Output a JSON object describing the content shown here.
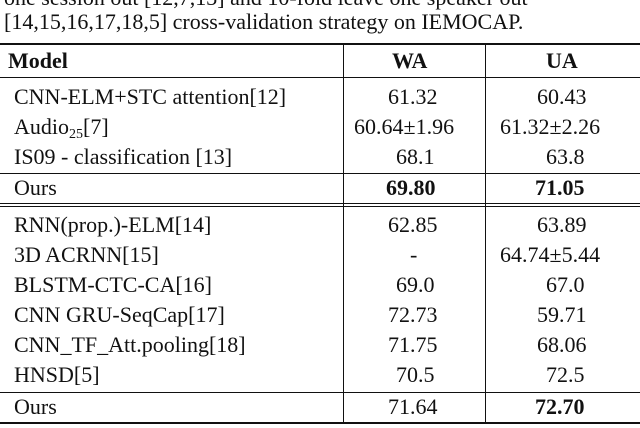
{
  "caption": {
    "line1": "one session out [12,7,13] and 10-fold leave one speaker out",
    "line2": "[14,15,16,17,18,5] cross-validation strategy on IEMOCAP."
  },
  "table": {
    "headers": [
      "Model",
      "WA",
      "UA"
    ],
    "group1": [
      {
        "model": "CNN-ELM+STC attention[12]",
        "wa": "61.32",
        "ua": "60.43"
      },
      {
        "model_main": "Audio",
        "model_sub": "25",
        "model_ref": "[7]",
        "wa": "60.64±1.96",
        "ua": "61.32±2.26"
      },
      {
        "model": "IS09 - classification [13]",
        "wa": "68.1",
        "ua": "63.8"
      },
      {
        "model": "Ours",
        "wa": "69.80",
        "ua": "71.05"
      }
    ],
    "group2": [
      {
        "model": "RNN(prop.)-ELM[14]",
        "wa": "62.85",
        "ua": "63.89"
      },
      {
        "model": "3D ACRNN[15]",
        "wa": "-",
        "ua": "64.74±5.44"
      },
      {
        "model": "BLSTM-CTC-CA[16]",
        "wa": "69.0",
        "ua": "67.0"
      },
      {
        "model": "CNN GRU-SeqCap[17]",
        "wa": "72.73",
        "ua": "59.71"
      },
      {
        "model": "CNN_TF_Att.pooling[18]",
        "wa": "71.75",
        "ua": "68.06"
      },
      {
        "model": "HNSD[5]",
        "wa": "70.5",
        "ua": "72.5"
      },
      {
        "model": "Ours",
        "wa": "71.64",
        "ua": "72.70"
      }
    ]
  }
}
